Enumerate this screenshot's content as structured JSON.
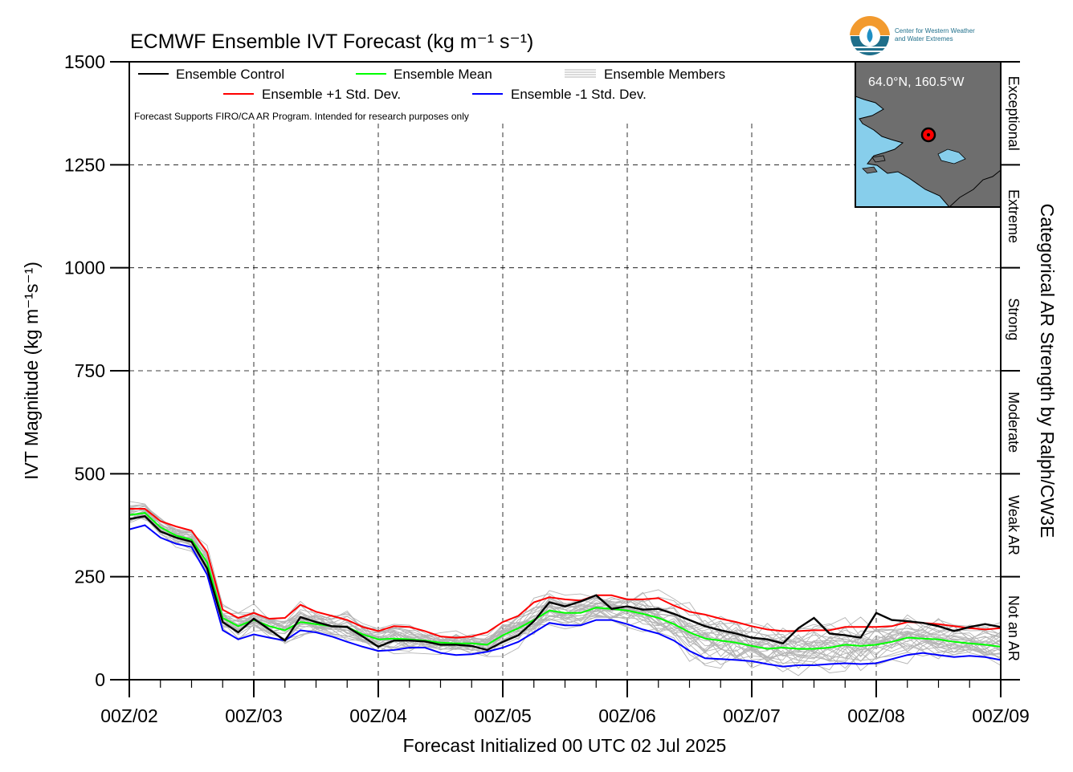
{
  "chart_data": {
    "type": "line",
    "title": "ECMWF Ensemble IVT Forecast (kg m⁻¹ s⁻¹)",
    "ylabel": "IVT Magnitude (kg m⁻¹s⁻¹)",
    "xlabel": "Forecast Initialized 00 UTC 02 Jul 2025",
    "right_axis_label": "Categorical AR Strength by Ralph/CW3E",
    "disclaimer": "Forecast Supports FIRO/CA AR Program. Intended for research purposes only",
    "ylim": [
      0,
      1500
    ],
    "xlim": [
      0,
      168
    ],
    "grid": true,
    "legend_position": "top-left",
    "yticks": [
      0,
      250,
      500,
      750,
      1000,
      1250,
      1500
    ],
    "xticks": [
      {
        "x": 0,
        "label": "00Z/02"
      },
      {
        "x": 24,
        "label": "00Z/03"
      },
      {
        "x": 48,
        "label": "00Z/04"
      },
      {
        "x": 72,
        "label": "00Z/05"
      },
      {
        "x": 96,
        "label": "00Z/06"
      },
      {
        "x": 120,
        "label": "00Z/07"
      },
      {
        "x": 144,
        "label": "00Z/08"
      },
      {
        "x": 168,
        "label": "00Z/09"
      }
    ],
    "categories": [
      {
        "label": "Not an AR",
        "from": 0,
        "to": 250
      },
      {
        "label": "Weak AR",
        "from": 250,
        "to": 500
      },
      {
        "label": "Moderate",
        "from": 500,
        "to": 750
      },
      {
        "label": "Strong",
        "from": 750,
        "to": 1000
      },
      {
        "label": "Extreme",
        "from": 1000,
        "to": 1250
      },
      {
        "label": "Exceptional",
        "from": 1250,
        "to": 1500
      }
    ],
    "x": [
      0,
      3,
      6,
      9,
      12,
      15,
      18,
      21,
      24,
      27,
      30,
      33,
      36,
      39,
      42,
      45,
      48,
      51,
      54,
      57,
      60,
      63,
      66,
      69,
      72,
      75,
      78,
      81,
      84,
      87,
      90,
      93,
      96,
      99,
      102,
      105,
      108,
      111,
      114,
      117,
      120,
      123,
      126,
      129,
      132,
      135,
      138,
      141,
      144,
      147,
      150,
      153,
      156,
      159,
      162,
      165,
      168
    ],
    "series": [
      {
        "name": "Ensemble Control",
        "color": "#000000",
        "values": [
          390,
          397,
          360,
          345,
          335,
          270,
          140,
          115,
          148,
          122,
          95,
          152,
          140,
          130,
          128,
          105,
          80,
          95,
          95,
          93,
          85,
          85,
          82,
          72,
          92,
          108,
          142,
          188,
          178,
          190,
          205,
          172,
          178,
          170,
          172,
          160,
          145,
          130,
          120,
          112,
          102,
          98,
          88,
          125,
          150,
          112,
          108,
          102,
          162,
          145,
          142,
          138,
          130,
          118,
          128,
          135,
          128
        ]
      },
      {
        "name": "Ensemble Mean",
        "color": "#00ff00",
        "values": [
          400,
          405,
          370,
          350,
          340,
          285,
          150,
          130,
          145,
          130,
          120,
          140,
          135,
          130,
          128,
          110,
          98,
          100,
          98,
          95,
          90,
          88,
          88,
          85,
          108,
          125,
          145,
          168,
          162,
          162,
          175,
          172,
          168,
          160,
          150,
          135,
          115,
          100,
          95,
          90,
          82,
          75,
          78,
          75,
          75,
          78,
          85,
          82,
          85,
          92,
          102,
          100,
          98,
          92,
          88,
          85,
          80
        ]
      },
      {
        "name": "Ensemble +1 Std. Dev.",
        "color": "#ff0000",
        "values": [
          415,
          415,
          385,
          372,
          362,
          310,
          170,
          150,
          162,
          148,
          150,
          182,
          165,
          155,
          145,
          128,
          118,
          130,
          128,
          118,
          105,
          102,
          105,
          115,
          140,
          155,
          188,
          200,
          195,
          192,
          205,
          205,
          195,
          195,
          198,
          180,
          165,
          158,
          148,
          140,
          130,
          122,
          118,
          118,
          120,
          120,
          128,
          128,
          128,
          130,
          140,
          138,
          135,
          130,
          125,
          122,
          125
        ]
      },
      {
        "name": "Ensemble -1 Std. Dev.",
        "color": "#0000ff",
        "values": [
          365,
          375,
          345,
          330,
          322,
          255,
          120,
          98,
          110,
          102,
          95,
          120,
          115,
          105,
          92,
          80,
          70,
          72,
          78,
          78,
          65,
          60,
          62,
          68,
          78,
          92,
          115,
          138,
          132,
          132,
          145,
          145,
          135,
          122,
          112,
          95,
          70,
          52,
          50,
          48,
          45,
          38,
          32,
          35,
          35,
          38,
          40,
          38,
          40,
          50,
          60,
          65,
          60,
          55,
          58,
          55,
          48
        ]
      }
    ],
    "members_label": "Ensemble Members",
    "members_color": "#b4b4b4",
    "members_count": 30
  },
  "inset": {
    "label": "64.0°N, 160.5°W",
    "water_color": "#87ceeb",
    "land_color": "#6e6e6e",
    "marker_color": "#ff0000"
  },
  "logo": {
    "line1": "Center for Western Weather",
    "line2": "and Water Extremes"
  }
}
